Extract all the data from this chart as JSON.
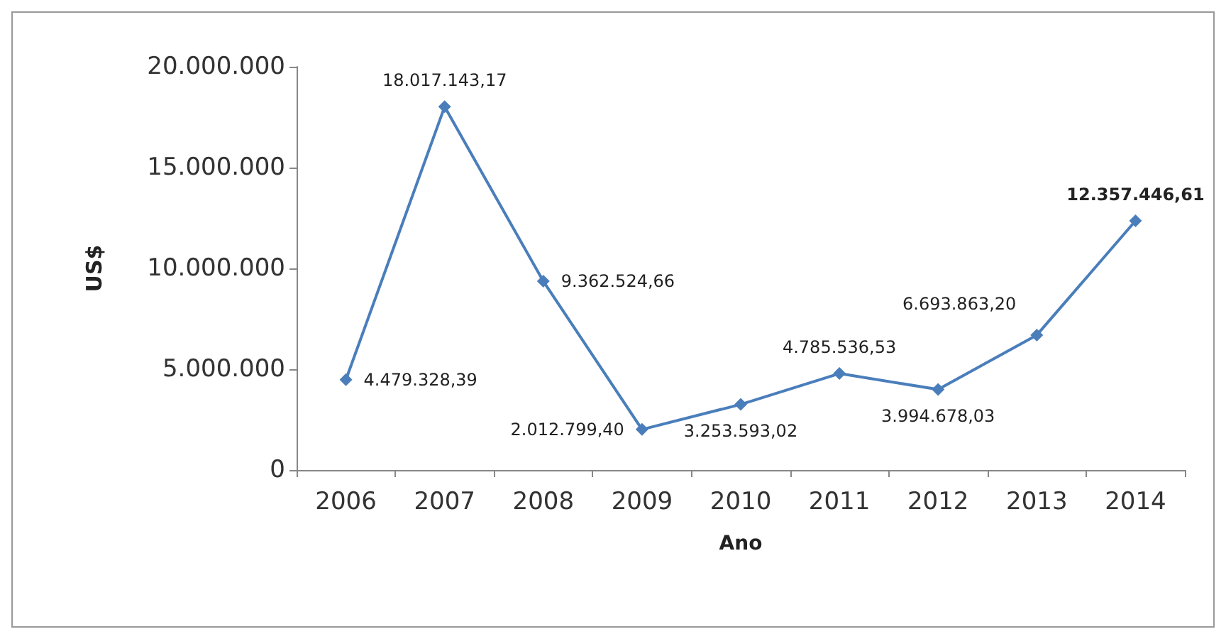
{
  "chart_data": {
    "type": "line",
    "xlabel": "Ano",
    "ylabel": "US$",
    "categories": [
      "2006",
      "2007",
      "2008",
      "2009",
      "2010",
      "2011",
      "2012",
      "2013",
      "2014"
    ],
    "series": [
      {
        "color": "#4a7ebb",
        "values": [
          4479328.39,
          18017143.17,
          9362524.66,
          2012799.4,
          3253593.02,
          4785536.53,
          3994678.03,
          6693863.2,
          12357446.61
        ],
        "value_labels": [
          "4.479.328,39",
          "18.017.143,17",
          "9.362.524,66",
          "2.012.799,40",
          "3.253.593,02",
          "4.785.536,53",
          "3.994.678,03",
          "6.693.863,20",
          "12.357.446,61"
        ]
      }
    ],
    "ylim": [
      0,
      20000000
    ],
    "yticks": [
      {
        "value": 0,
        "label": "0"
      },
      {
        "value": 5000000,
        "label": "5.000.000"
      },
      {
        "value": 10000000,
        "label": "10.000.000"
      },
      {
        "value": 15000000,
        "label": "15.000.000"
      },
      {
        "value": 20000000,
        "label": "20.000.000"
      }
    ],
    "grid": false,
    "marker": "diamond",
    "line_style": "solid"
  }
}
